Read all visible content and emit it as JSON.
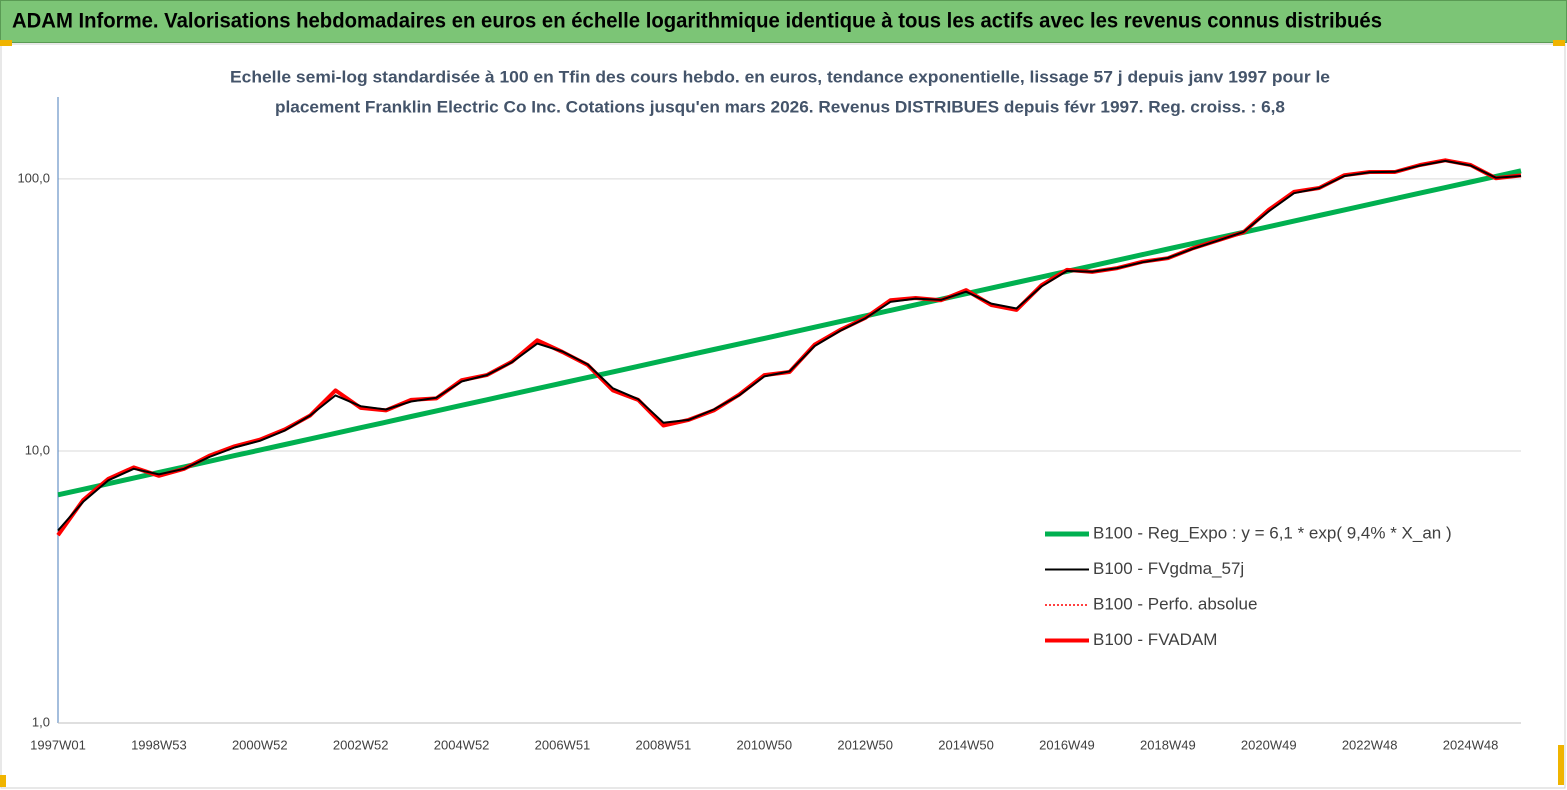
{
  "chart_data": {
    "type": "line",
    "title": "ADAM Informe. Valorisations hebdomadaires en euros en échelle logarithmique identique à tous les actifs avec les revenus connus distribués",
    "subtitle": [
      "Echelle semi-log standardisée à 100 en Tfin des cours hebdo. en euros, tendance exponentielle, lissage 57 j depuis janv 1997 pour le",
      "placement Franklin Electric Co Inc.  Cotations jusqu'en mars 2026. Revenus DISTRIBUES depuis févr 1997. Reg. croiss. : 6,8"
    ],
    "categories": [
      "1997W01",
      null,
      null,
      null,
      "1998W53",
      null,
      null,
      null,
      "2000W52",
      null,
      null,
      null,
      "2002W52",
      null,
      null,
      null,
      "2004W52",
      null,
      null,
      null,
      "2006W51",
      null,
      null,
      null,
      "2008W51",
      null,
      null,
      null,
      "2010W50",
      null,
      null,
      null,
      "2012W50",
      null,
      null,
      null,
      "2014W50",
      null,
      null,
      null,
      "2016W49",
      null,
      null,
      null,
      "2018W49",
      null,
      null,
      null,
      "2020W49",
      null,
      null,
      null,
      "2022W48",
      null,
      null,
      null,
      "2024W48",
      null,
      null
    ],
    "log_scale": true,
    "ylim": [
      1,
      200
    ],
    "yticks": [
      {
        "value": 1,
        "label": "1,0"
      },
      {
        "value": 10,
        "label": "10,0"
      },
      {
        "value": 100,
        "label": "100,0"
      }
    ],
    "grid": true,
    "legend_position": "right",
    "series": [
      {
        "name": "B100 - Reg_Expo : y = 6,1 *  exp( 9,4% *  X_an )",
        "color": "#00b050",
        "values": [
          6.9,
          7.23,
          7.58,
          7.95,
          8.34,
          8.74,
          9.16,
          9.61,
          10.07,
          10.56,
          11.07,
          11.61,
          12.17,
          12.76,
          13.38,
          14.03,
          14.71,
          15.42,
          16.16,
          16.95,
          17.77,
          18.63,
          19.53,
          20.47,
          21.46,
          22.5,
          23.59,
          24.74,
          25.93,
          27.19,
          28.5,
          29.88,
          31.33,
          32.85,
          34.44,
          36.1,
          37.85,
          39.68,
          41.6,
          43.62,
          45.73,
          47.94,
          50.26,
          52.69,
          55.25,
          57.92,
          60.72,
          63.66,
          66.75,
          69.98,
          73.36,
          76.92,
          80.64,
          84.54,
          88.64,
          92.92,
          97.42,
          102.1,
          107.1
        ]
      },
      {
        "name": "B100 - FVgdma_57j",
        "color": "#000000",
        "values": [
          5.1,
          6.5,
          7.8,
          8.6,
          8.2,
          8.6,
          9.5,
          10.3,
          10.9,
          11.9,
          13.5,
          16.0,
          14.6,
          14.2,
          15.2,
          15.7,
          18.0,
          19.0,
          21.2,
          24.8,
          23.2,
          20.8,
          17.0,
          15.5,
          12.7,
          13.0,
          14.2,
          16.0,
          18.8,
          19.6,
          24.3,
          27.6,
          30.7,
          35.3,
          36.3,
          35.9,
          38.5,
          34.8,
          33.4,
          40.3,
          45.9,
          45.6,
          47.0,
          49.4,
          51.2,
          55.4,
          59.4,
          63.8,
          76.0,
          88.6,
          92.5,
          102.5,
          105.8,
          106.2,
          112.0,
          116.5,
          112.0,
          101.0,
          102.5
        ]
      },
      {
        "name": "B100 - Perfo. absolue",
        "color": "#ff0000",
        "style": "dotted",
        "values": [
          4.9,
          6.6,
          7.9,
          8.7,
          8.1,
          8.6,
          9.6,
          10.4,
          11.0,
          12.0,
          13.5,
          16.7,
          14.4,
          14.1,
          15.4,
          15.6,
          18.2,
          19.0,
          21.3,
          25.5,
          23.1,
          20.7,
          16.7,
          15.4,
          12.4,
          13.0,
          14.1,
          16.1,
          19.0,
          19.5,
          24.6,
          27.8,
          30.8,
          35.8,
          36.5,
          35.8,
          39.0,
          34.4,
          33.0,
          40.7,
          46.3,
          45.5,
          47.0,
          49.6,
          51.1,
          55.6,
          59.5,
          63.7,
          77.0,
          89.6,
          92.6,
          103.2,
          106,
          106,
          112.5,
          117,
          112.5,
          100.6,
          103
        ]
      },
      {
        "name": "B100 - FVADAM",
        "color": "#ff0000",
        "values": [
          4.9,
          6.6,
          7.9,
          8.7,
          8.1,
          8.6,
          9.6,
          10.4,
          11.0,
          12.0,
          13.5,
          16.7,
          14.4,
          14.1,
          15.4,
          15.6,
          18.2,
          19.0,
          21.3,
          25.5,
          23.1,
          20.7,
          16.7,
          15.4,
          12.4,
          13.0,
          14.1,
          16.1,
          19.0,
          19.5,
          24.6,
          27.8,
          30.8,
          35.8,
          36.5,
          35.8,
          39.0,
          34.4,
          33.0,
          40.7,
          46.3,
          45.5,
          47.0,
          49.6,
          51.1,
          55.6,
          59.5,
          63.7,
          77.0,
          89.6,
          92.6,
          103.2,
          106,
          106,
          112.5,
          117,
          112.5,
          100.6,
          103
        ]
      }
    ]
  }
}
